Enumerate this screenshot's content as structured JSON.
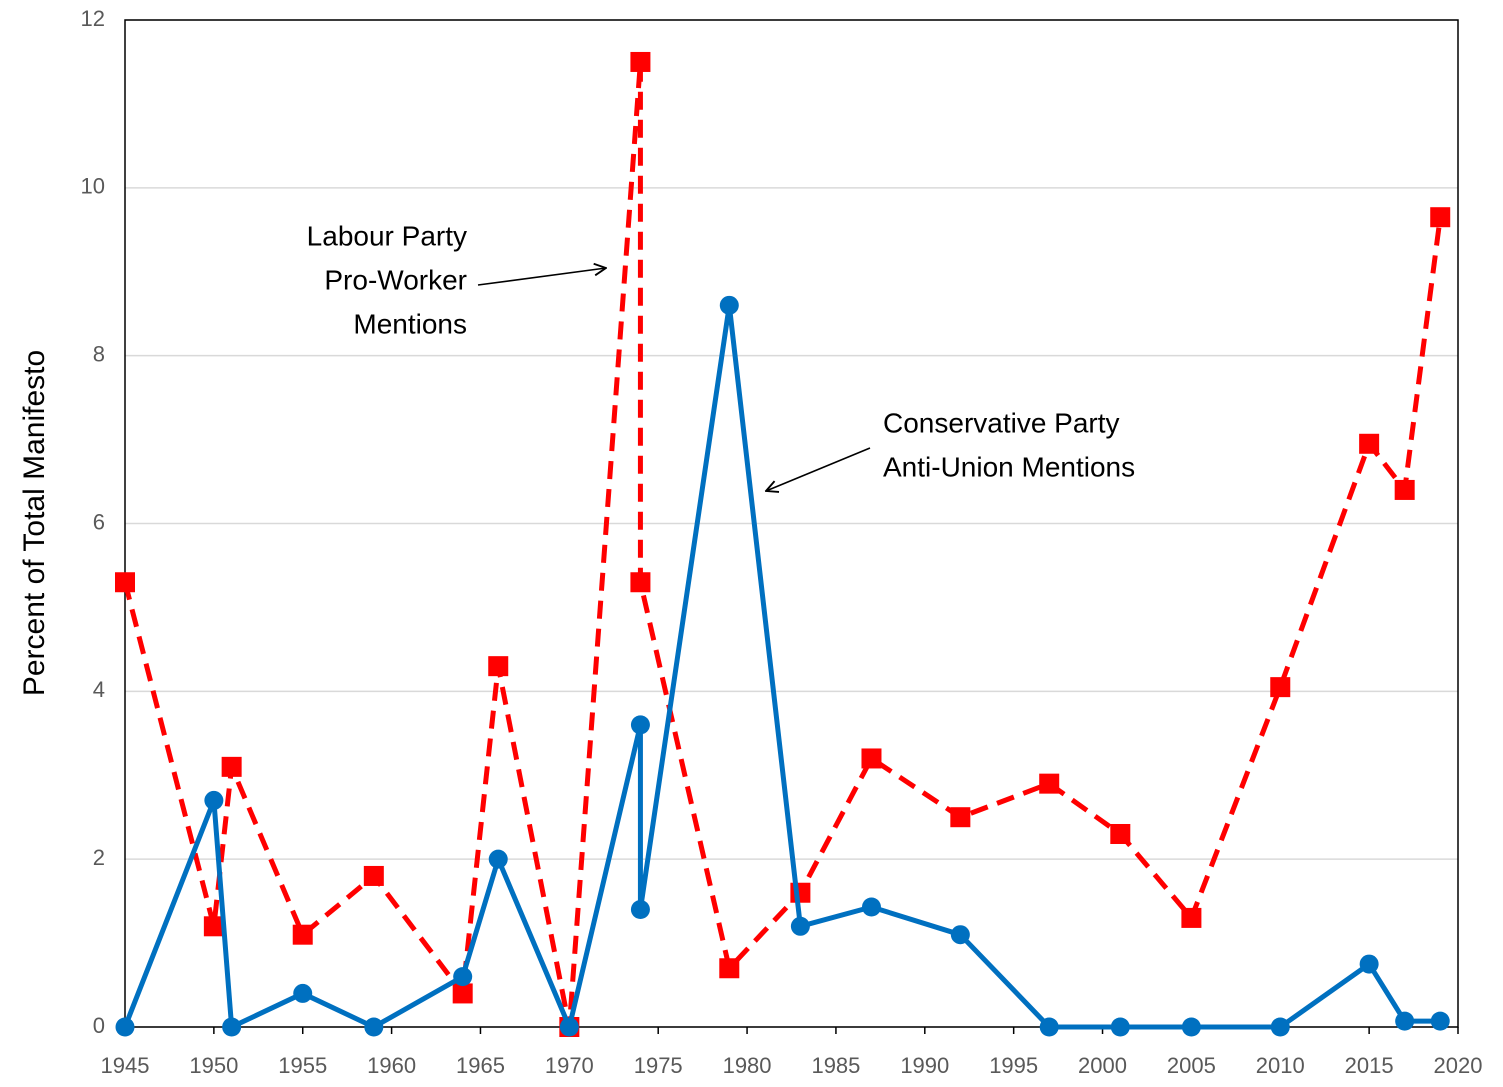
{
  "chart_data": {
    "type": "line",
    "y_label": "Percent of Total Manifesto",
    "xlim": [
      1945,
      2020
    ],
    "xticks": [
      1945,
      1950,
      1955,
      1960,
      1965,
      1970,
      1975,
      1980,
      1985,
      1990,
      1995,
      2000,
      2005,
      2010,
      2015,
      2020
    ],
    "ylim": [
      0,
      12
    ],
    "yticks": [
      0,
      2,
      4,
      6,
      8,
      10,
      12
    ],
    "grid": true,
    "series": [
      {
        "color": "#ff0000",
        "dashed": true,
        "marker": "square",
        "x": [
          1945,
          1950,
          1951,
          1955,
          1959,
          1964,
          1966,
          1970,
          1974,
          1974,
          1979,
          1983,
          1987,
          1992,
          1997,
          2001,
          2005,
          2010,
          2015,
          2017,
          2019
        ],
        "values": [
          5.3,
          1.2,
          3.1,
          1.1,
          1.8,
          0.4,
          4.3,
          0,
          11.5,
          5.3,
          0.7,
          1.6,
          3.2,
          2.5,
          2.9,
          2.3,
          1.3,
          4.05,
          6.95,
          6.4,
          9.65
        ]
      },
      {
        "color": "#0070c0",
        "dashed": false,
        "marker": "circle",
        "x": [
          1945,
          1950,
          1951,
          1955,
          1959,
          1964,
          1966,
          1970,
          1974,
          1974,
          1979,
          1983,
          1987,
          1992,
          1997,
          2001,
          2005,
          2010,
          2015,
          2017,
          2019
        ],
        "values": [
          0,
          2.7,
          0,
          0.4,
          0,
          0.6,
          2.0,
          0,
          3.6,
          1.4,
          8.6,
          1.2,
          1.43,
          1.1,
          0,
          0,
          0,
          0,
          0.75,
          0.07,
          0.07
        ]
      }
    ],
    "annotations": [
      {
        "lines": [
          "Labour Party",
          "Pro-Worker",
          "Mentions"
        ]
      },
      {
        "lines": [
          "Conservative Party",
          "Anti-Union Mentions"
        ]
      }
    ]
  }
}
